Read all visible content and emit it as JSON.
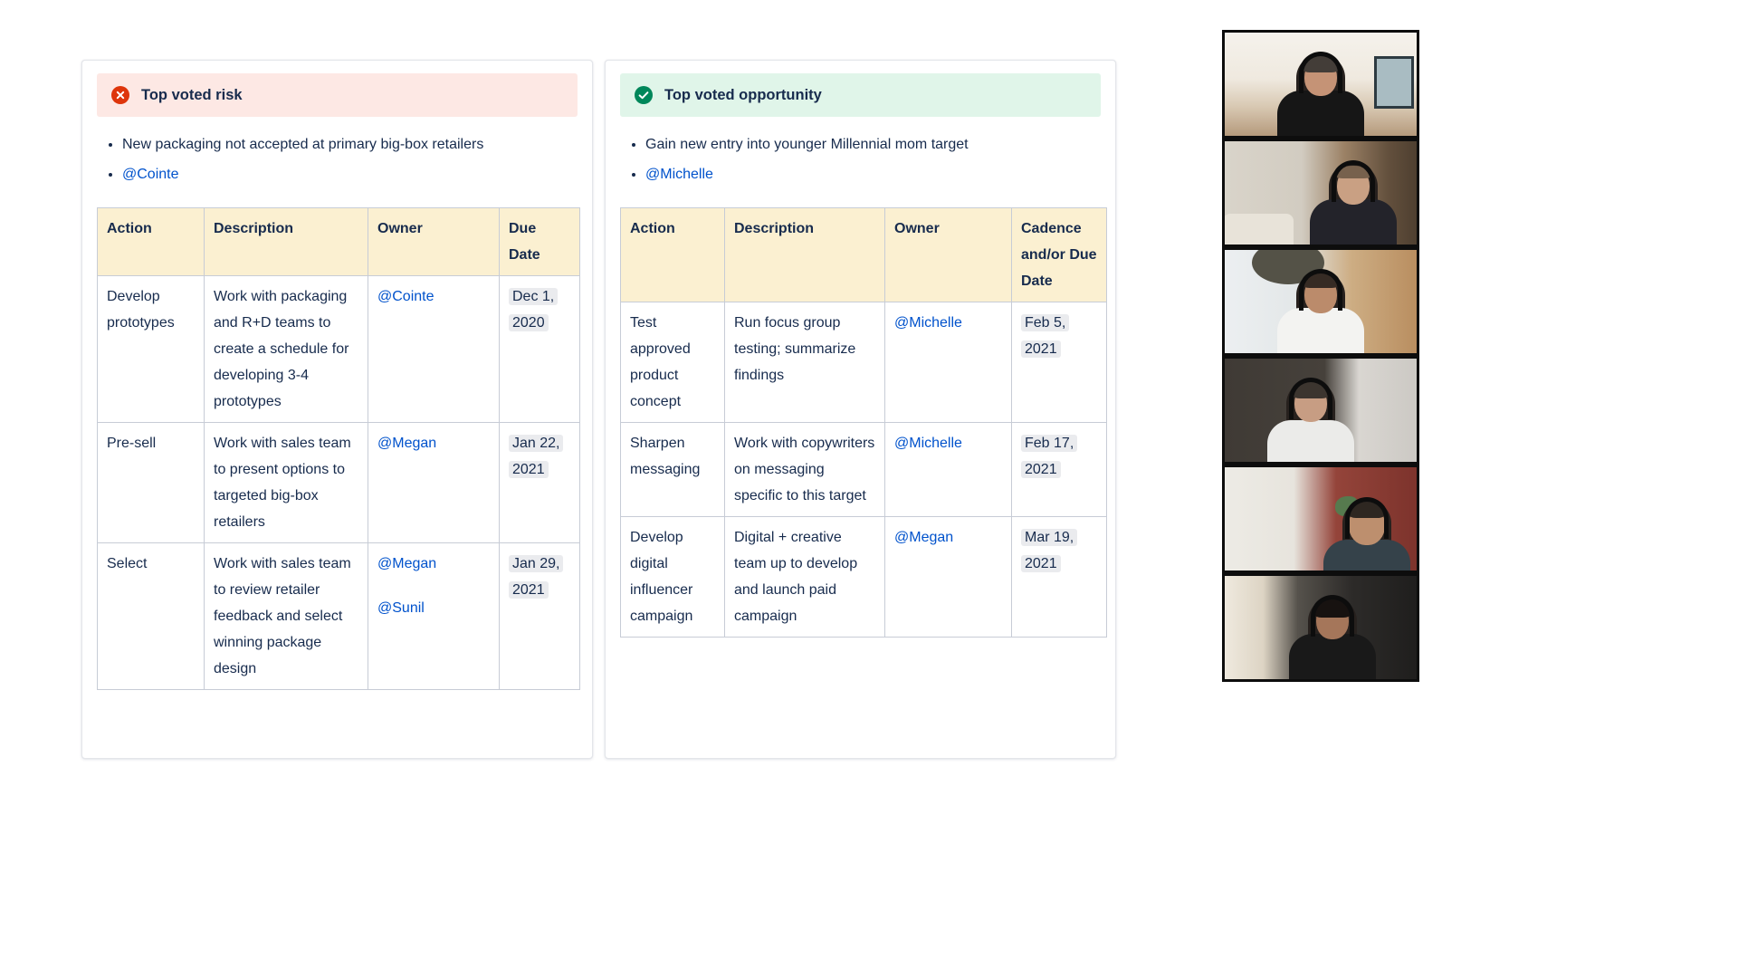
{
  "colors": {
    "text": "#172B4D",
    "link": "#0052CC",
    "table_header_bg": "#FBF0D1",
    "date_lozenge_bg": "#EAEBEE",
    "table_border": "#C7CCD6"
  },
  "risk_panel": {
    "banner": {
      "title": "Top voted risk",
      "icon": "error-cross-icon",
      "bg_color": "#FDE8E4",
      "icon_color": "#DE350B"
    },
    "bullets": {
      "point": "New packaging not accepted at primary big-box retailers",
      "mention": "@Cointe"
    },
    "table": {
      "headers": [
        "Action",
        "Description",
        "Owner",
        "Due Date"
      ],
      "rows": [
        {
          "action": "Develop prototypes",
          "description": "Work with packaging and R+D teams to create a schedule for developing 3-4 prototypes",
          "owners": [
            "@Cointe"
          ],
          "due_date": "Dec 1, 2020"
        },
        {
          "action": "Pre-sell",
          "description": "Work with sales team to present options to targeted big-box retailers",
          "owners": [
            "@Megan"
          ],
          "due_date": "Jan 22, 2021"
        },
        {
          "action": "Select",
          "description": "Work with sales team to review retailer feedback and select winning package design",
          "owners": [
            "@Megan",
            "@Sunil"
          ],
          "due_date": "Jan 29, 2021"
        }
      ]
    }
  },
  "opportunity_panel": {
    "banner": {
      "title": "Top voted opportunity",
      "icon": "success-check-icon",
      "bg_color": "#E0F5E9",
      "icon_color": "#00875A"
    },
    "bullets": {
      "point": "Gain new entry into younger Millennial mom target",
      "mention": "@Michelle"
    },
    "table": {
      "headers": [
        "Action",
        "Description",
        "Owner",
        "Cadence and/or Due Date"
      ],
      "rows": [
        {
          "action": "Test approved product concept",
          "description": "Run focus group testing; summarize findings",
          "owners": [
            "@Michelle"
          ],
          "due_date": "Feb 5, 2021"
        },
        {
          "action": "Sharpen messaging",
          "description": "Work with copywriters on messaging specific to this target",
          "owners": [
            "@Michelle"
          ],
          "due_date": "Feb 17, 2021"
        },
        {
          "action": "Develop digital influencer campaign",
          "description": "Digital + creative team up to develop and launch paid campaign",
          "owners": [
            "@Megan"
          ],
          "due_date": "Mar 19, 2021"
        }
      ]
    }
  },
  "video_sidebar": {
    "participant_count": 6,
    "participants": [
      {
        "id": "participant-1"
      },
      {
        "id": "participant-2"
      },
      {
        "id": "participant-3"
      },
      {
        "id": "participant-4"
      },
      {
        "id": "participant-5"
      },
      {
        "id": "participant-6"
      }
    ]
  }
}
